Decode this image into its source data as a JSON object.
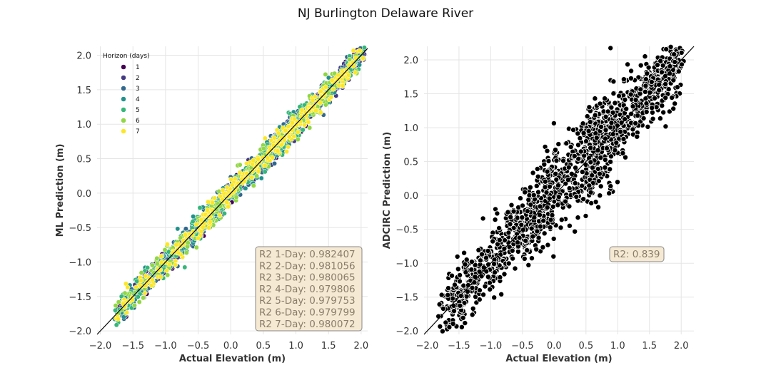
{
  "suptitle": "NJ Burlington Delaware River",
  "chart_data": [
    {
      "type": "scatter",
      "xlabel": "Actual Elevation (m)",
      "ylabel": "ML Prediction (m)",
      "xlim": [
        -2.05,
        2.1
      ],
      "ylim": [
        -2.05,
        2.13
      ],
      "xticks": [
        "−2.0",
        "−1.5",
        "−1.0",
        "−0.5",
        "0.0",
        "0.5",
        "1.0",
        "1.5",
        "2.0"
      ],
      "yticks": [
        "−2.0",
        "−1.5",
        "−1.0",
        "−0.5",
        "0.0",
        "0.5",
        "1.0",
        "1.5",
        "2.0"
      ],
      "grid": true,
      "identity_line": true,
      "legend": {
        "title": "Horizon (days)",
        "position": "top-left",
        "entries": [
          "1",
          "2",
          "3",
          "4",
          "5",
          "6",
          "7"
        ],
        "colors": [
          "#440154",
          "#443983",
          "#31688e",
          "#21918c",
          "#35b779",
          "#90d743",
          "#fde725"
        ]
      },
      "series_note_points": "approximate representative scatter; about 1000 points per horizon clustered along y = x with residual sd about 0.08 to 0.12 m",
      "series": [
        {
          "name": "1",
          "residual_sd": 0.08
        },
        {
          "name": "2",
          "residual_sd": 0.085
        },
        {
          "name": "3",
          "residual_sd": 0.09
        },
        {
          "name": "4",
          "residual_sd": 0.095
        },
        {
          "name": "5",
          "residual_sd": 0.1
        },
        {
          "name": "6",
          "residual_sd": 0.1
        },
        {
          "name": "7",
          "residual_sd": 0.1
        }
      ],
      "annotation": [
        "R2 1-Day: 0.982407",
        "R2 2-Day: 0.981056",
        "R2 3-Day: 0.980065",
        "R2 4-Day: 0.979806",
        "R2 5-Day: 0.979753",
        "R2 6-Day: 0.979799",
        "R2 7-Day: 0.980072"
      ]
    },
    {
      "type": "scatter",
      "xlabel": "Actual Elevation (m)",
      "ylabel": "ADCIRC Prediction (m)",
      "xlim": [
        -2.05,
        2.2
      ],
      "ylim": [
        -2.05,
        2.2
      ],
      "xticks": [
        "−2.0",
        "−1.5",
        "−1.0",
        "−0.5",
        "0.0",
        "0.5",
        "1.0",
        "1.5",
        "2.0"
      ],
      "yticks": [
        "−2.0",
        "−1.5",
        "−1.0",
        "−0.5",
        "0.0",
        "0.5",
        "1.0",
        "1.5",
        "2.0"
      ],
      "grid": true,
      "identity_line": true,
      "series": [
        {
          "color": "#000000",
          "residual_sd": 0.25
        }
      ],
      "annotation": [
        "R2: 0.839"
      ]
    }
  ],
  "colors": {
    "grid": "#e5e5e5",
    "annotation_face": "#f5e9d3",
    "annotation_edge": "#888888",
    "annotation_text": "#8a7d6a"
  }
}
